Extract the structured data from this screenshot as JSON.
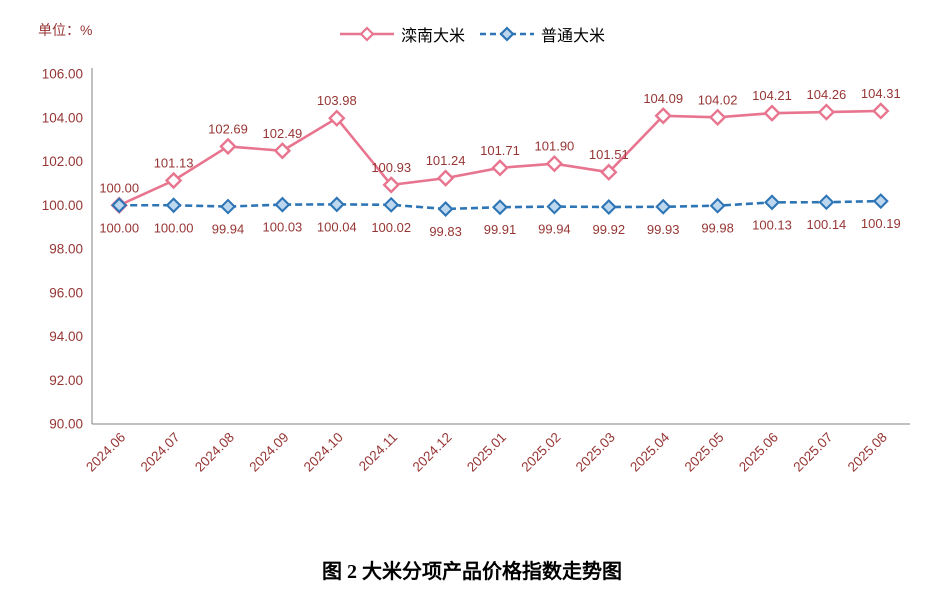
{
  "unit_label": "单位：%",
  "caption": "图 2 大米分项产品价格指数走势图",
  "legend": [
    {
      "label": "滦南大米",
      "color": "#e8758f",
      "marker_fill": "#ffffff",
      "dash": false
    },
    {
      "label": "普通大米",
      "color": "#2e75b6",
      "marker_fill": "#bdd7ee",
      "dash": true
    }
  ],
  "chart_data": {
    "type": "line",
    "title": "图 2 大米分项产品价格指数走势图",
    "xlabel": "",
    "ylabel": "单位：%",
    "categories": [
      "2024.06",
      "2024.07",
      "2024.08",
      "2024.09",
      "2024.10",
      "2024.11",
      "2024.12",
      "2025.01",
      "2025.02",
      "2025.03",
      "2025.04",
      "2025.05",
      "2025.06",
      "2025.07",
      "2025.08"
    ],
    "series": [
      {
        "name": "滦南大米",
        "color": "#e8758f",
        "marker_fill": "#ffffff",
        "dash": null,
        "label_position": "above",
        "values": [
          100.0,
          101.13,
          102.69,
          102.49,
          103.98,
          100.93,
          101.24,
          101.71,
          101.9,
          101.51,
          104.09,
          104.02,
          104.21,
          104.26,
          104.31
        ]
      },
      {
        "name": "普通大米",
        "color": "#2e75b6",
        "marker_fill": "#bdd7ee",
        "dash": "7,4",
        "label_position": "below",
        "values": [
          100.0,
          100.0,
          99.94,
          100.03,
          100.04,
          100.02,
          99.83,
          99.91,
          99.94,
          99.92,
          99.93,
          99.98,
          100.13,
          100.14,
          100.19
        ]
      }
    ],
    "ylim": [
      90,
      106
    ],
    "ytick_step": 2,
    "grid": false,
    "legend_position": "top",
    "label_color": "#963634",
    "axis_color": "#808080"
  }
}
